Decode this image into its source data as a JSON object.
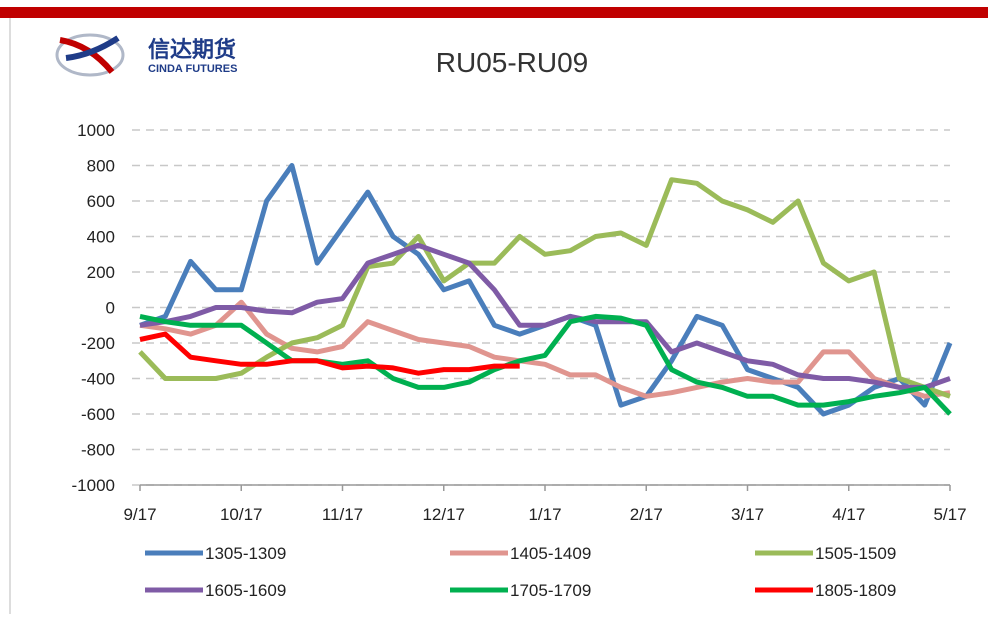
{
  "logo": {
    "name": "信达期货",
    "name_en": "CINDA FUTURES"
  },
  "chart_data": {
    "type": "line",
    "title": "RU05-RU09",
    "x": [
      0,
      0.25,
      0.5,
      0.75,
      1,
      1.25,
      1.5,
      1.75,
      2,
      2.25,
      2.5,
      2.75,
      3,
      3.25,
      3.5,
      3.75,
      4,
      4.25,
      4.5,
      4.75,
      5,
      5.25,
      5.5,
      5.75,
      6,
      6.25,
      6.5,
      6.75,
      7,
      7.25,
      7.5,
      7.75,
      8
    ],
    "xlim": [
      0,
      8
    ],
    "xticks": [
      {
        "value": 0,
        "label": "9/17"
      },
      {
        "value": 1,
        "label": "10/17"
      },
      {
        "value": 2,
        "label": "11/17"
      },
      {
        "value": 3,
        "label": "12/17"
      },
      {
        "value": 4,
        "label": "1/17"
      },
      {
        "value": 5,
        "label": "2/17"
      },
      {
        "value": 6,
        "label": "3/17"
      },
      {
        "value": 7,
        "label": "4/17"
      },
      {
        "value": 8,
        "label": "5/17"
      }
    ],
    "ylim": [
      -1000,
      1000
    ],
    "yticks": [
      -1000,
      -800,
      -600,
      -400,
      -200,
      0,
      200,
      400,
      600,
      800,
      1000
    ],
    "grid": true,
    "series": [
      {
        "name": "1305-1309",
        "color": "#4a7ebb",
        "values": [
          -100,
          -50,
          260,
          100,
          100,
          600,
          800,
          250,
          450,
          650,
          400,
          300,
          100,
          150,
          -100,
          -150,
          -100,
          -50,
          -100,
          -550,
          -500,
          -300,
          -50,
          -100,
          -350,
          -400,
          -450,
          -600,
          -550,
          -450,
          -400,
          -550,
          -200
        ]
      },
      {
        "name": "1405-1409",
        "color": "#e0958f",
        "values": [
          -100,
          -120,
          -150,
          -100,
          30,
          -150,
          -230,
          -250,
          -220,
          -80,
          -130,
          -180,
          -200,
          -220,
          -280,
          -300,
          -320,
          -380,
          -380,
          -450,
          -500,
          -480,
          -450,
          -420,
          -400,
          -420,
          -420,
          -250,
          -250,
          -400,
          -450,
          -500,
          -480
        ]
      },
      {
        "name": "1505-1509",
        "color": "#9bbb59",
        "values": [
          -250,
          -400,
          -400,
          -400,
          -370,
          -280,
          -200,
          -170,
          -100,
          230,
          250,
          400,
          150,
          250,
          250,
          400,
          300,
          320,
          400,
          420,
          350,
          720,
          700,
          600,
          550,
          480,
          600,
          250,
          150,
          200,
          -400,
          -450,
          -500
        ]
      },
      {
        "name": "1605-1609",
        "color": "#7f5ba6",
        "values": [
          -100,
          -80,
          -50,
          0,
          0,
          -20,
          -30,
          30,
          50,
          250,
          300,
          350,
          300,
          250,
          100,
          -100,
          -100,
          -50,
          -80,
          -80,
          -80,
          -250,
          -200,
          -250,
          -300,
          -320,
          -380,
          -400,
          -400,
          -420,
          -450,
          -450,
          -400
        ]
      },
      {
        "name": "1705-1709",
        "color": "#00b050",
        "values": [
          -50,
          -80,
          -100,
          -100,
          -100,
          -200,
          -300,
          -300,
          -320,
          -300,
          -400,
          -450,
          -450,
          -420,
          -350,
          -300,
          -270,
          -80,
          -50,
          -60,
          -100,
          -350,
          -420,
          -450,
          -500,
          -500,
          -550,
          -550,
          -530,
          -500,
          -480,
          -450,
          -600
        ]
      },
      {
        "name": "1805-1809",
        "color": "#ff0000",
        "values": [
          -180,
          -150,
          -280,
          -300,
          -320,
          -320,
          -300,
          -300,
          -340,
          -330,
          -340,
          -370,
          -350,
          -350,
          -330,
          -330,
          null,
          null,
          null,
          null,
          null,
          null,
          null,
          null,
          null,
          null,
          null,
          null,
          null,
          null,
          null,
          null,
          null
        ]
      }
    ]
  }
}
